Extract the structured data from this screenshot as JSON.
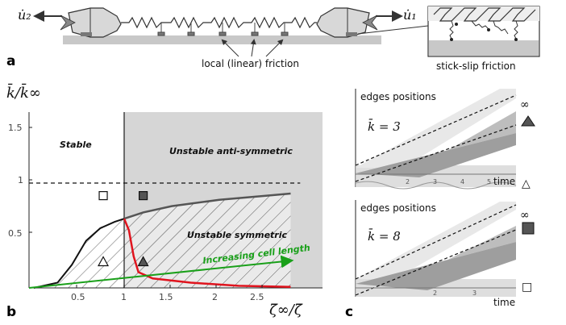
{
  "panel_a": {
    "panel_label": "a",
    "u2_label": "u̇₂",
    "u1_label": "u̇₁",
    "local_friction_label": "local (linear) friction",
    "stick_slip_label": "stick-slip friction"
  },
  "panel_b": {
    "panel_label": "b",
    "y_label": "k̄/k̄∞",
    "x_label": "ζ̄∞/ζ̄",
    "x_ticks": [
      "0.5",
      "1",
      "1.5",
      "2",
      "2.5"
    ],
    "y_ticks": [
      "0.5",
      "1",
      "1.5"
    ],
    "region_stable": "Stable",
    "region_unstable_anti": "Unstable anti-symmetric",
    "region_unstable_sym": "Unstable symmetric",
    "arrow_label": "Increasing cell length"
  },
  "panel_c": {
    "panel_label": "c",
    "top": {
      "title": "edges positions",
      "k_label": "k̄ = 3",
      "time_label": "time",
      "ticks": [
        "2",
        "3",
        "4",
        "5"
      ],
      "marker_top": "∞",
      "marker_bottom": "△"
    },
    "bottom": {
      "title": "edges positions",
      "k_label": "k̄ = 8",
      "time_label": "time",
      "ticks": [
        "2",
        "3"
      ],
      "marker_top": "∞",
      "marker_bottom": "□"
    }
  },
  "colors": {
    "red_boundary": "#e0141e",
    "green_arrow": "#1aa01a",
    "region_gray": "#d6d6d6",
    "dark_marker": "#555555"
  },
  "chart_data": {
    "type": "line",
    "xlabel": "ζ̄∞/ζ̄",
    "ylabel": "k̄/k̄∞",
    "xlim": [
      0,
      2.85
    ],
    "ylim": [
      0,
      1.75
    ],
    "series": [
      {
        "values": [
          [
            0.05,
            0.0
          ],
          [
            0.3,
            0.05
          ],
          [
            0.45,
            0.22
          ],
          [
            0.6,
            0.45
          ],
          [
            0.75,
            0.57
          ],
          [
            0.9,
            0.63
          ],
          [
            1.0,
            0.66
          ]
        ]
      },
      {
        "values": [
          [
            1.0,
            0.66
          ],
          [
            1.2,
            0.72
          ],
          [
            1.5,
            0.78
          ],
          [
            2.0,
            0.84
          ],
          [
            2.5,
            0.88
          ],
          [
            2.75,
            0.9
          ]
        ]
      },
      {
        "values": [
          [
            1.0,
            0.66
          ],
          [
            1.05,
            0.55
          ],
          [
            1.1,
            0.3
          ],
          [
            1.15,
            0.15
          ],
          [
            1.3,
            0.09
          ],
          [
            1.7,
            0.05
          ],
          [
            2.2,
            0.02
          ],
          [
            2.75,
            0.01
          ]
        ]
      },
      {
        "values": [
          [
            0.0,
            0.0
          ],
          [
            2.75,
            0.26
          ]
        ]
      }
    ],
    "reference_line_y": 1,
    "markers": [
      {
        "symbol": "open-square",
        "x": 0.78,
        "y": 0.88
      },
      {
        "symbol": "filled-square",
        "x": 1.2,
        "y": 0.88
      },
      {
        "symbol": "open-triangle",
        "x": 0.78,
        "y": 0.25
      },
      {
        "symbol": "filled-triangle",
        "x": 1.2,
        "y": 0.25
      }
    ]
  }
}
